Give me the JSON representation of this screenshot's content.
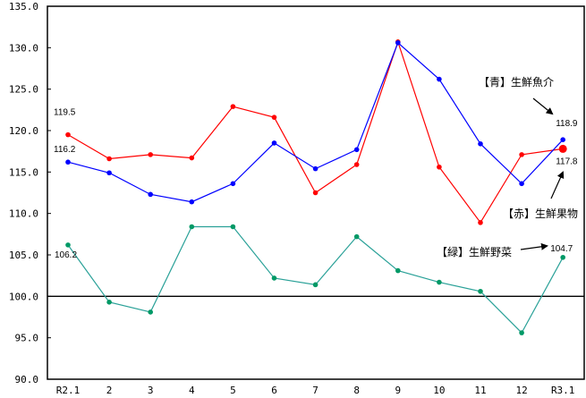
{
  "chart_data": {
    "type": "line",
    "title": "",
    "xlabel": "",
    "ylabel": "",
    "ylim": [
      90.0,
      135.0
    ],
    "yticks": [
      "135.0",
      "130.0",
      "125.0",
      "120.0",
      "115.0",
      "110.0",
      "105.0",
      "100.0",
      "95.0",
      "90.0"
    ],
    "ytick_values": [
      135,
      130,
      125,
      120,
      115,
      110,
      105,
      100,
      95,
      90
    ],
    "categories": [
      "R2.1",
      "2",
      "3",
      "4",
      "5",
      "6",
      "7",
      "8",
      "9",
      "10",
      "11",
      "12",
      "R3.1"
    ],
    "grid": false,
    "reference_line": 100.0,
    "series": [
      {
        "name": "【赤】生鮮果物",
        "color": "#ff0000",
        "values": [
          119.5,
          116.6,
          117.1,
          116.7,
          122.9,
          121.6,
          112.5,
          115.9,
          130.7,
          115.6,
          108.9,
          117.1,
          117.8
        ]
      },
      {
        "name": "【青】生鮮魚介",
        "color": "#0000ff",
        "values": [
          116.2,
          114.9,
          112.3,
          111.4,
          113.6,
          118.5,
          115.4,
          117.7,
          130.6,
          126.2,
          118.4,
          113.6,
          118.9
        ]
      },
      {
        "name": "【緑】生鮮野菜",
        "color": "#009966",
        "line_color": "#2aa198",
        "values": [
          106.2,
          99.3,
          98.1,
          108.4,
          108.4,
          102.2,
          101.4,
          107.2,
          103.1,
          101.7,
          100.6,
          95.6,
          104.7
        ]
      }
    ],
    "data_labels": [
      {
        "text": "119.5",
        "series": 0,
        "index": 0
      },
      {
        "text": "116.2",
        "series": 1,
        "index": 0
      },
      {
        "text": "106.2",
        "series": 2,
        "index": 0
      },
      {
        "text": "118.9",
        "series": 1,
        "index": 12
      },
      {
        "text": "117.8",
        "series": 0,
        "index": 12
      },
      {
        "text": "104.7",
        "series": 2,
        "index": 12
      }
    ],
    "annotations": [
      {
        "text": "【青】生鮮魚介",
        "target_series": 1
      },
      {
        "text": "【赤】生鮮果物",
        "target_series": 0
      },
      {
        "text": "【緑】生鮮野菜",
        "target_series": 2
      }
    ]
  }
}
